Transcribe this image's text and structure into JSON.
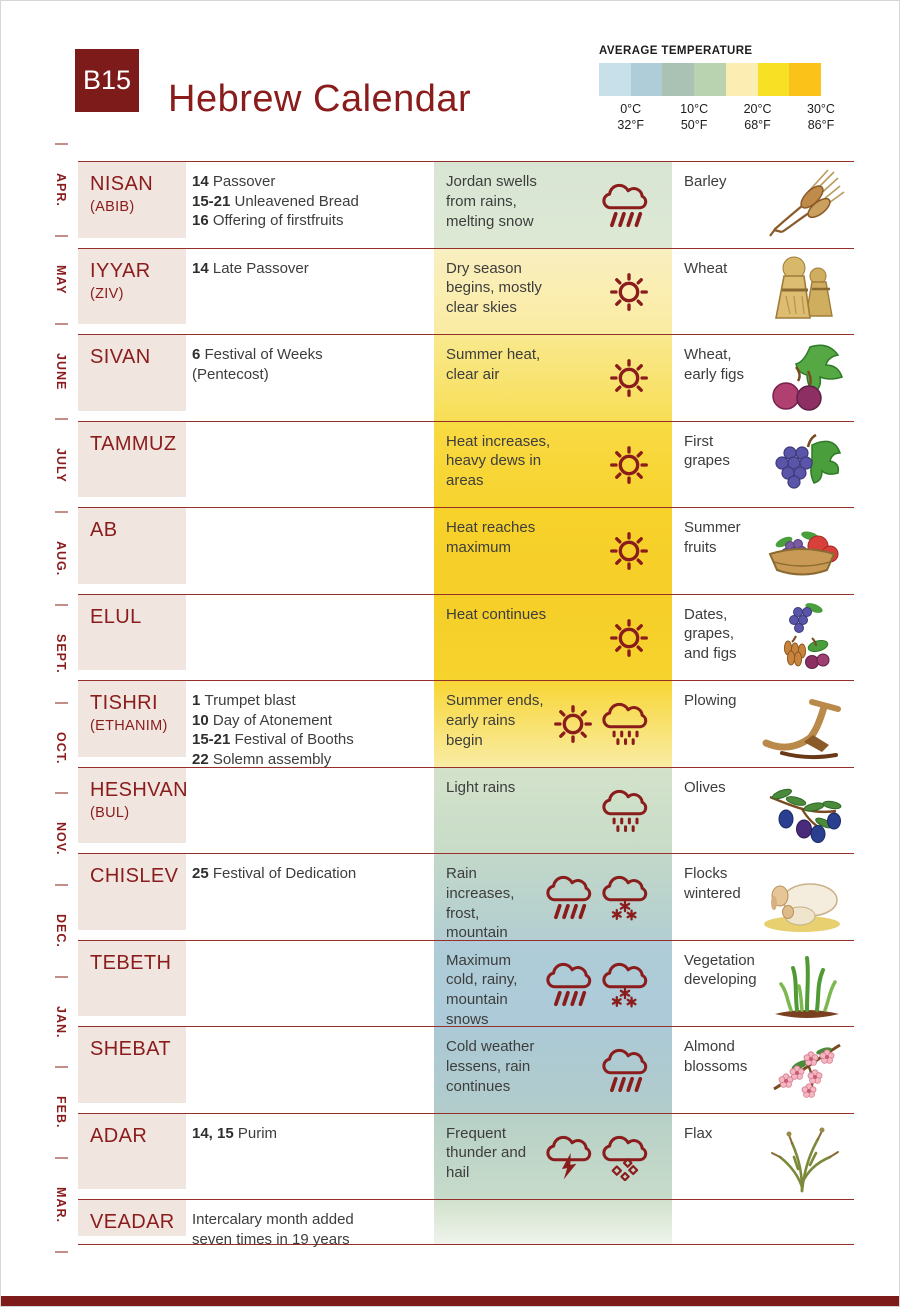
{
  "header": {
    "badge": "B15",
    "title": "Hebrew Calendar"
  },
  "legend": {
    "title": "AVERAGE TEMPERATURE",
    "swatches": [
      "#c7e0ea",
      "#afccd9",
      "#a9c2b3",
      "#b9d3b1",
      "#fceeb2",
      "#f8e125",
      "#fbc31a"
    ],
    "labels": [
      {
        "c": "0°C",
        "f": "32°F"
      },
      {
        "c": "10°C",
        "f": "50°F"
      },
      {
        "c": "20°C",
        "f": "68°F"
      },
      {
        "c": "30°C",
        "f": "86°F"
      }
    ]
  },
  "gregorian_months": [
    "APR.",
    "MAY",
    "JUNE",
    "JULY",
    "AUG.",
    "SEPT.",
    "OCT.",
    "NOV.",
    "DEC.",
    "JAN.",
    "FEB.",
    "MAR."
  ],
  "rows": [
    {
      "month": "NISAN",
      "alt": "(ABIB)",
      "festivals": [
        {
          "num": "14",
          "text": "Passover"
        },
        {
          "num": "15-21",
          "text": "Unleavened Bread"
        },
        {
          "num": "16",
          "text": "Offering of firstfruits"
        }
      ],
      "weather": "Jordan swells from rains, melting snow",
      "icons": [
        "rain-cloud"
      ],
      "crop": "Barley",
      "illustration": "barley",
      "bg": [
        "#d8e5d3",
        "#dde9d4"
      ]
    },
    {
      "month": "IYYAR",
      "alt": "(ZIV)",
      "festivals": [
        {
          "num": "14",
          "text": "Late Passover"
        }
      ],
      "weather": "Dry season begins, mostly clear skies",
      "icons": [
        "sun"
      ],
      "crop": "Wheat",
      "illustration": "wheat-sheaves",
      "bg": [
        "#f9efc0",
        "#faeca2"
      ]
    },
    {
      "month": "SIVAN",
      "alt": "",
      "festivals": [
        {
          "num": "6",
          "text": "Festival of Weeks"
        },
        {
          "num": "",
          "text": "(Pentecost)"
        }
      ],
      "weather": "Summer heat, clear air",
      "icons": [
        "sun"
      ],
      "crop": "Wheat, early figs",
      "illustration": "figs",
      "bg": [
        "#f9e98f",
        "#f8de55"
      ]
    },
    {
      "month": "TAMMUZ",
      "alt": "",
      "festivals": [],
      "weather": "Heat increases, heavy dews in areas",
      "icons": [
        "sun"
      ],
      "crop": "First grapes",
      "illustration": "grapes",
      "bg": [
        "#f8da43",
        "#f7d32e"
      ]
    },
    {
      "month": "AB",
      "alt": "",
      "festivals": [],
      "weather": "Heat reaches maximum",
      "icons": [
        "sun"
      ],
      "crop": "Summer fruits",
      "illustration": "fruit-basket",
      "bg": [
        "#f7d22b",
        "#f6cf28"
      ]
    },
    {
      "month": "ELUL",
      "alt": "",
      "festivals": [],
      "weather": "Heat continues",
      "icons": [
        "sun"
      ],
      "crop": "Dates, grapes, and figs",
      "illustration": "dates-grapes-figs",
      "bg": [
        "#f6cf28",
        "#f7d32e"
      ]
    },
    {
      "month": "TISHRI",
      "alt": "(ETHANIM)",
      "festivals": [
        {
          "num": "1",
          "text": "Trumpet blast"
        },
        {
          "num": "10",
          "text": "Day of Atonement"
        },
        {
          "num": "15-21",
          "text": "Festival of Booths"
        },
        {
          "num": "22",
          "text": "Solemn assembly"
        }
      ],
      "weather": "Summer ends, early rains begin",
      "icons": [
        "sun",
        "drizzle-cloud"
      ],
      "crop": "Plowing",
      "illustration": "plow",
      "bg": [
        "#f8d636",
        "#f9eca4"
      ]
    },
    {
      "month": "HESHVAN",
      "alt": "(BUL)",
      "festivals": [],
      "weather": "Light rains",
      "icons": [
        "drizzle-cloud"
      ],
      "crop": "Olives",
      "illustration": "olives",
      "bg": [
        "#d3e2ca",
        "#c8dcc8"
      ]
    },
    {
      "month": "CHISLEV",
      "alt": "",
      "festivals": [
        {
          "num": "25",
          "text": "Festival of Dedication"
        }
      ],
      "weather": "Rain increases, frost, mountain snows",
      "icons": [
        "rain-cloud",
        "snow-cloud"
      ],
      "crop": "Flocks wintered",
      "illustration": "sheep",
      "bg": [
        "#c2d8c8",
        "#b3ced2"
      ]
    },
    {
      "month": "TEBETH",
      "alt": "",
      "festivals": [],
      "weather": "Maximum cold, rainy, mountain snows",
      "icons": [
        "rain-cloud",
        "snow-cloud"
      ],
      "crop": "Vegetation developing",
      "illustration": "grass",
      "bg": [
        "#afccd8",
        "#accad8"
      ]
    },
    {
      "month": "SHEBAT",
      "alt": "",
      "festivals": [],
      "weather": "Cold weather lessens, rain continues",
      "icons": [
        "rain-cloud"
      ],
      "crop": "Almond blossoms",
      "illustration": "almond-blossoms",
      "bg": [
        "#abc9d6",
        "#b2cccb"
      ]
    },
    {
      "month": "ADAR",
      "alt": "",
      "festivals": [
        {
          "num": "14, 15",
          "text": "Purim"
        }
      ],
      "weather": "Frequent thunder and hail",
      "icons": [
        "thunder-cloud",
        "hail-cloud"
      ],
      "crop": "Flax",
      "illustration": "flax",
      "bg": [
        "#b7d0c6",
        "#c7dbca"
      ]
    },
    {
      "month": "VEADAR",
      "alt": "",
      "festivals": [
        {
          "num": "",
          "text": "Intercalary month added"
        },
        {
          "num": "",
          "text": "seven times in 19 years"
        }
      ],
      "weather": "",
      "icons": [],
      "crop": "",
      "illustration": "",
      "bg": [
        "#d1e1cc",
        "#eff4ec"
      ]
    }
  ],
  "colors": {
    "accent_red": "#8a1c1c",
    "badge_bg": "#7d1a1a",
    "month_cell_bg": "#f1e5df",
    "separator": "#943029",
    "text": "#3d3d3d",
    "footer_bar": "#7d1a1a"
  }
}
